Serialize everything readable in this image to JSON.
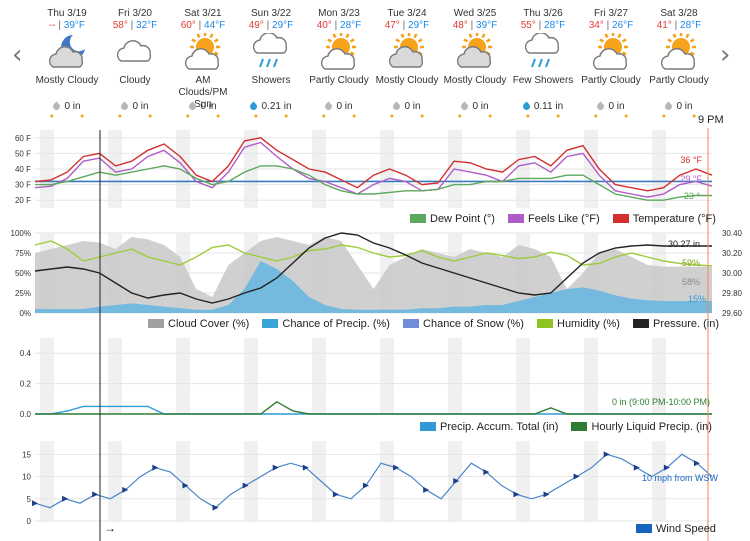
{
  "nav": {
    "prev": "‹",
    "next": "›"
  },
  "current_time_label": "9 PM",
  "days": [
    {
      "name": "Thu 3/19",
      "hi": "--",
      "lo": "39°F",
      "icon": "mostly-cloudy-night-icon",
      "cond": "Mostly Cloudy",
      "precip": "0 in",
      "drop": "gray"
    },
    {
      "name": "Fri 3/20",
      "hi": "58°",
      "lo": "32°F",
      "icon": "cloudy-icon",
      "cond": "Cloudy",
      "precip": "0 in",
      "drop": "gray"
    },
    {
      "name": "Sat 3/21",
      "hi": "60°",
      "lo": "44°F",
      "icon": "partly-cloudy-sun-icon",
      "cond": "AM Clouds/PM Sun",
      "precip": "0 in",
      "drop": "gray"
    },
    {
      "name": "Sun 3/22",
      "hi": "49°",
      "lo": "29°F",
      "icon": "showers-icon",
      "cond": "Showers",
      "precip": "0.21 in",
      "drop": "blue"
    },
    {
      "name": "Mon 3/23",
      "hi": "40°",
      "lo": "28°F",
      "icon": "partly-cloudy-sun-icon",
      "cond": "Partly Cloudy",
      "precip": "0 in",
      "drop": "gray"
    },
    {
      "name": "Tue 3/24",
      "hi": "47°",
      "lo": "29°F",
      "icon": "mostly-cloudy-sun-icon",
      "cond": "Mostly Cloudy",
      "precip": "0 in",
      "drop": "gray"
    },
    {
      "name": "Wed 3/25",
      "hi": "48°",
      "lo": "39°F",
      "icon": "mostly-cloudy-sun-icon",
      "cond": "Mostly Cloudy",
      "precip": "0 in",
      "drop": "gray"
    },
    {
      "name": "Thu 3/26",
      "hi": "55°",
      "lo": "28°F",
      "icon": "showers-icon",
      "cond": "Few Showers",
      "precip": "0.11 in",
      "drop": "blue"
    },
    {
      "name": "Fri 3/27",
      "hi": "34°",
      "lo": "26°F",
      "icon": "partly-cloudy-sun-icon",
      "cond": "Partly Cloudy",
      "precip": "0 in",
      "drop": "gray"
    },
    {
      "name": "Sat 3/28",
      "hi": "41°",
      "lo": "28°F",
      "icon": "partly-cloudy-sun-icon",
      "cond": "Partly Cloudy",
      "precip": "0 in",
      "drop": "gray"
    }
  ],
  "colors": {
    "temperature": "#d32f2f",
    "feels_like": "#b05cc8",
    "dew_point": "#5ca85c",
    "freeze_line": "#3a7bbf",
    "cloud": "#c8c8c8",
    "precip_chance": "#64b5e0",
    "snow_chance": "#a78bd6",
    "humidity": "#9ccc3a",
    "pressure": "#222222",
    "accum": "#2e9bd6",
    "liquid": "#2e7d32",
    "wind": "#4a86c8",
    "wind_legend": "#1565c0"
  },
  "legends": {
    "temp": [
      "Dew Point (°)",
      "Feels Like (°F)",
      "Temperature (°F)"
    ],
    "atmo": [
      "Cloud Cover (%)",
      "Chance of Precip. (%)",
      "Chance of Snow (%)",
      "Humidity (%)",
      "Pressure. (in)"
    ],
    "precip": [
      "Precip. Accum. Total (in)",
      "Hourly Liquid Precip. (in)"
    ],
    "wind": [
      "Wind Speed"
    ]
  },
  "annotations": {
    "temp_end": "36 °F",
    "feels_end": "29 °F",
    "dew_end": "23 °",
    "pressure_end": "30.27 in",
    "humidity_end": "59%",
    "cloud_end": "58%",
    "precip_end": "15%",
    "precip_note": "0 in (9:00 PM-10:00 PM)",
    "wind_note": "10 mph from WSW",
    "arrow": "→"
  },
  "chart_data": [
    {
      "type": "line",
      "axis_ticks": [
        "60 F",
        "50 F",
        "40 F",
        "30 F",
        "20 F"
      ],
      "ylim": [
        15,
        65
      ],
      "freeze_line": 32,
      "series": [
        {
          "name": "Temperature (°F)",
          "values": [
            32,
            33,
            38,
            48,
            50,
            42,
            45,
            52,
            56,
            48,
            36,
            32,
            42,
            58,
            60,
            52,
            46,
            40,
            38,
            33,
            28,
            36,
            40,
            36,
            30,
            31,
            45,
            44,
            40,
            38,
            46,
            48,
            42,
            52,
            55,
            40,
            30,
            28,
            26,
            28,
            36,
            40,
            36
          ]
        },
        {
          "name": "Feels Like (°F)",
          "values": [
            28,
            29,
            34,
            45,
            47,
            38,
            40,
            48,
            52,
            44,
            32,
            28,
            38,
            54,
            57,
            48,
            40,
            34,
            32,
            28,
            24,
            30,
            34,
            32,
            26,
            27,
            40,
            38,
            36,
            32,
            42,
            44,
            38,
            48,
            50,
            36,
            26,
            24,
            22,
            24,
            30,
            32,
            29
          ]
        },
        {
          "name": "Dew Point (°)",
          "values": [
            30,
            30,
            32,
            35,
            38,
            36,
            38,
            40,
            42,
            40,
            34,
            30,
            32,
            38,
            42,
            42,
            40,
            36,
            30,
            26,
            24,
            24,
            25,
            26,
            26,
            27,
            30,
            30,
            32,
            32,
            34,
            34,
            34,
            36,
            36,
            30,
            24,
            22,
            20,
            20,
            22,
            23,
            23
          ]
        }
      ]
    },
    {
      "type": "area",
      "left_axis": [
        "100%",
        "75%",
        "50%",
        "25%",
        "0%"
      ],
      "right_axis": [
        "30.40",
        "30.20",
        "30.00",
        "29.80",
        "29.60"
      ],
      "series": [
        {
          "name": "Cloud Cover (%)",
          "values": [
            75,
            80,
            85,
            90,
            88,
            80,
            95,
            92,
            85,
            70,
            30,
            20,
            60,
            75,
            90,
            95,
            90,
            85,
            95,
            90,
            60,
            30,
            60,
            70,
            80,
            75,
            70,
            80,
            75,
            70,
            85,
            80,
            70,
            30,
            50,
            75,
            80,
            70,
            60,
            58,
            58,
            58,
            58
          ]
        },
        {
          "name": "Chance of Precip. (%)",
          "values": [
            5,
            5,
            5,
            5,
            8,
            10,
            12,
            10,
            8,
            6,
            4,
            4,
            10,
            30,
            65,
            55,
            40,
            20,
            10,
            5,
            4,
            4,
            4,
            4,
            6,
            6,
            8,
            8,
            10,
            10,
            15,
            20,
            25,
            30,
            32,
            28,
            22,
            18,
            16,
            15,
            15,
            15,
            15
          ]
        },
        {
          "name": "Chance of Snow (%)",
          "values": [
            0,
            0,
            0,
            0,
            0,
            0,
            0,
            0,
            0,
            0,
            0,
            0,
            0,
            0,
            0,
            0,
            0,
            0,
            0,
            0,
            0,
            0,
            0,
            0,
            0,
            0,
            0,
            0,
            0,
            0,
            0,
            0,
            0,
            0,
            0,
            0,
            0,
            0,
            0,
            0,
            0,
            0,
            0
          ]
        },
        {
          "name": "Humidity (%)",
          "values": [
            85,
            90,
            80,
            65,
            70,
            75,
            80,
            70,
            65,
            60,
            70,
            82,
            85,
            75,
            70,
            65,
            70,
            78,
            80,
            85,
            82,
            75,
            70,
            72,
            78,
            70,
            65,
            70,
            75,
            72,
            68,
            70,
            76,
            72,
            60,
            62,
            70,
            75,
            70,
            65,
            62,
            60,
            59
          ]
        },
        {
          "name": "Pressure. (in)",
          "values": [
            30.02,
            30.04,
            30.06,
            30.04,
            30.0,
            29.9,
            29.8,
            29.75,
            29.78,
            29.8,
            29.74,
            29.7,
            29.74,
            29.8,
            29.85,
            29.95,
            30.1,
            30.25,
            30.35,
            30.4,
            30.38,
            30.3,
            30.25,
            30.18,
            30.1,
            30.05,
            30.0,
            29.95,
            29.9,
            29.85,
            29.8,
            29.78,
            29.8,
            29.95,
            30.1,
            30.2,
            30.25,
            30.27,
            30.28,
            30.27,
            30.27,
            30.27,
            30.27
          ]
        }
      ]
    },
    {
      "type": "line",
      "axis_ticks": [
        "0.4",
        "0.2",
        "0.0"
      ],
      "ylim": [
        0,
        0.5
      ],
      "series": [
        {
          "name": "Precip. Accum. Total (in)",
          "values": [
            0,
            0,
            0.02,
            0.05,
            0.05,
            0.05,
            0.05,
            0.05,
            0,
            0,
            0,
            0,
            0,
            0,
            0,
            0,
            0,
            0,
            0,
            0,
            0,
            0,
            0,
            0,
            0,
            0,
            0,
            0,
            0,
            0,
            0,
            0,
            0,
            0,
            0,
            0,
            0,
            0,
            0,
            0,
            0,
            0,
            0
          ]
        },
        {
          "name": "Hourly Liquid Precip. (in)",
          "values": [
            0,
            0,
            0,
            0,
            0,
            0,
            0,
            0,
            0,
            0,
            0,
            0,
            0,
            0,
            0,
            0.08,
            0.02,
            0,
            0,
            0,
            0,
            0,
            0,
            0,
            0,
            0,
            0,
            0,
            0,
            0,
            0,
            0,
            0.04,
            0,
            0,
            0,
            0,
            0,
            0,
            0,
            0,
            0,
            0
          ]
        }
      ]
    },
    {
      "type": "line",
      "axis_ticks": [
        "15",
        "10",
        "5",
        "0"
      ],
      "ylim": [
        0,
        18
      ],
      "series": [
        {
          "name": "Wind Speed",
          "values": [
            4,
            3,
            5,
            4,
            6,
            5,
            7,
            10,
            12,
            11,
            8,
            5,
            3,
            6,
            8,
            10,
            12,
            13,
            12,
            9,
            6,
            5,
            8,
            13,
            12,
            10,
            7,
            5,
            9,
            13,
            11,
            8,
            6,
            5,
            6,
            8,
            10,
            12,
            15,
            14,
            12,
            10,
            12,
            15,
            13,
            10
          ]
        }
      ]
    }
  ]
}
